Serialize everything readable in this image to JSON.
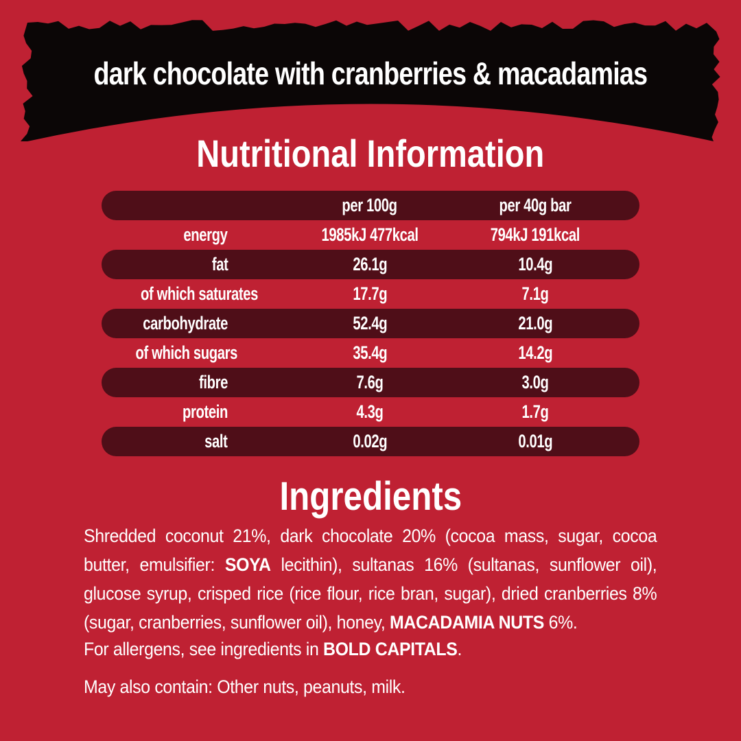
{
  "banner": {
    "title": "dark chocolate with cranberries & macadamias"
  },
  "nutrition": {
    "heading": "Nutritional Information",
    "columns": [
      "per 100g",
      "per 40g bar"
    ],
    "rows": [
      {
        "label": "energy",
        "per100": "1985kJ 477kcal",
        "per40": "794kJ 191kcal"
      },
      {
        "label": "fat",
        "per100": "26.1g",
        "per40": "10.4g"
      },
      {
        "label": "of which saturates",
        "per100": "17.7g",
        "per40": "7.1g"
      },
      {
        "label": "carbohydrate",
        "per100": "52.4g",
        "per40": "21.0g"
      },
      {
        "label": "of which sugars",
        "per100": "35.4g",
        "per40": "14.2g"
      },
      {
        "label": "fibre",
        "per100": "7.6g",
        "per40": "3.0g"
      },
      {
        "label": "protein",
        "per100": "4.3g",
        "per40": "1.7g"
      },
      {
        "label": "salt",
        "per100": "0.02g",
        "per40": "0.01g"
      }
    ]
  },
  "ingredients": {
    "heading": "Ingredients",
    "part1": "Shredded coconut 21%, dark chocolate 20% (cocoa mass, sugar, cocoa butter, emulsifier: ",
    "allergen1": "SOYA",
    "part2": " lecithin), sultanas 16% (sultanas, sunflower oil), glucose syrup, crisped rice (rice flour, rice bran, sugar), dried cranberries 8% (sugar, cranberries, sunflower oil), honey, ",
    "allergen2": "MACADAMIA NUTS",
    "part3": " 6%."
  },
  "allergen_note": {
    "part1": "For allergens, see ingredients in ",
    "bold": "BOLD CAPITALS",
    "part2": "."
  },
  "may_contain": "May also contain: Other nuts, peanuts, milk.",
  "colors": {
    "background": "#bf2133",
    "row_band": "#4f0e18",
    "banner_black": "#0b0606",
    "text": "#ffffff"
  }
}
